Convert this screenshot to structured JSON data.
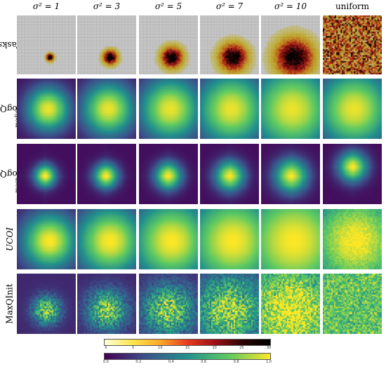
{
  "columns": [
    "σ² = 1",
    "σ² = 3",
    "σ² = 5",
    "σ² = 7",
    "σ² = 10",
    "uniform"
  ],
  "rows": [
    {
      "label": "Tasks",
      "sub": ""
    },
    {
      "label": "LogQInit",
      "sub": "median"
    },
    {
      "label": "LogQInit",
      "sub": "mean"
    },
    {
      "label": "UCOI",
      "sub": ""
    },
    {
      "label": "MaxQInit",
      "sub": ""
    }
  ],
  "colorbar_tasks": {
    "ticks": [
      "0",
      "5",
      "10",
      "15",
      "20",
      "25",
      "30"
    ],
    "range": [
      0,
      30
    ],
    "colors": [
      "#ffffd9",
      "#fde64a",
      "#fca92a",
      "#e83a1e",
      "#9c0f14",
      "#2a0505",
      "#000000"
    ]
  },
  "colorbar_values": {
    "ticks": [
      "0.0",
      "0.2",
      "0.4",
      "0.6",
      "0.8",
      "1.0"
    ],
    "range": [
      0,
      1
    ],
    "colors": [
      "#440154",
      "#3b528b",
      "#21918c",
      "#5ec962",
      "#fde725"
    ]
  }
}
